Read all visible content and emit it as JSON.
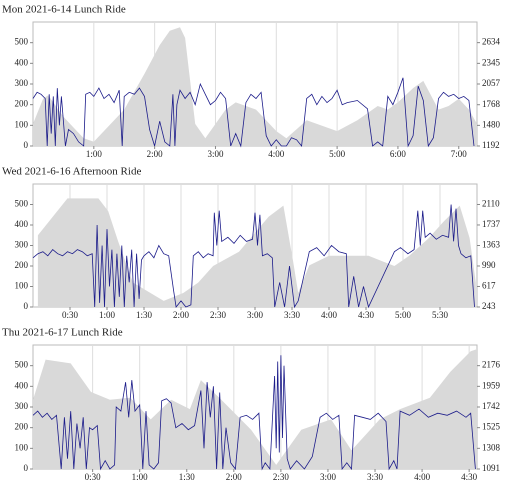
{
  "chart_data": [
    {
      "type": "line",
      "title": "Mon 2021-6-14 Lunch Ride",
      "grid": "x",
      "xlim": [
        0,
        438
      ],
      "ylim": [
        0,
        600
      ],
      "y2lim": [
        1192,
        2922
      ],
      "xticks": [
        {
          "value": 60,
          "label": "1:00"
        },
        {
          "value": 120,
          "label": "2:00"
        },
        {
          "value": 180,
          "label": "3:00"
        },
        {
          "value": 240,
          "label": "4:00"
        },
        {
          "value": 300,
          "label": "5:00"
        },
        {
          "value": 360,
          "label": "6:00"
        },
        {
          "value": 420,
          "label": "7:00"
        }
      ],
      "yticks": [
        0,
        100,
        200,
        300,
        400,
        500
      ],
      "y2ticks": [
        1192,
        1480,
        1768,
        2057,
        2345,
        2634
      ],
      "series": [
        {
          "axis": "y2",
          "color": "#d9d9d9",
          "x": [
            0,
            10,
            15,
            30,
            50,
            60,
            90,
            110,
            125,
            135,
            145,
            150,
            160,
            170,
            190,
            200,
            220,
            240,
            250,
            270,
            300,
            320,
            340,
            350,
            360,
            375,
            385,
            400,
            410,
            420,
            430,
            438
          ],
          "values": [
            1500,
            1850,
            1900,
            1600,
            1300,
            1250,
            1700,
            2200,
            2600,
            2800,
            2850,
            2700,
            1500,
            1300,
            1700,
            1800,
            1700,
            1400,
            1300,
            1550,
            1400,
            1550,
            1750,
            1700,
            1800,
            2000,
            2100,
            1700,
            1750,
            1850,
            1700,
            1500
          ]
        },
        {
          "color": "#1c1c8a",
          "x": [
            0,
            4,
            8,
            12,
            14,
            16,
            18,
            20,
            22,
            24,
            26,
            28,
            32,
            35,
            40,
            45,
            50,
            52,
            56,
            60,
            65,
            70,
            75,
            80,
            85,
            88,
            90,
            95,
            100,
            105,
            110,
            115,
            120,
            125,
            130,
            135,
            138,
            140,
            142,
            145,
            150,
            155,
            160,
            165,
            170,
            175,
            180,
            185,
            190,
            195,
            200,
            205,
            210,
            215,
            220,
            225,
            230,
            235,
            240,
            245,
            250,
            255,
            260,
            265,
            270,
            275,
            280,
            285,
            290,
            295,
            300,
            305,
            310,
            320,
            330,
            335,
            340,
            345,
            350,
            355,
            360,
            365,
            370,
            375,
            380,
            385,
            390,
            395,
            400,
            405,
            410,
            415,
            420,
            425,
            430,
            435
          ],
          "values": [
            230,
            260,
            250,
            230,
            0,
            250,
            60,
            240,
            0,
            280,
            100,
            240,
            0,
            80,
            60,
            20,
            0,
            250,
            260,
            240,
            280,
            230,
            250,
            210,
            270,
            0,
            240,
            260,
            250,
            280,
            240,
            80,
            0,
            120,
            20,
            0,
            250,
            0,
            200,
            270,
            230,
            260,
            200,
            300,
            250,
            200,
            220,
            260,
            230,
            0,
            60,
            0,
            210,
            250,
            230,
            260,
            50,
            0,
            30,
            0,
            0,
            40,
            30,
            0,
            230,
            250,
            200,
            240,
            210,
            230,
            270,
            200,
            210,
            220,
            180,
            0,
            20,
            0,
            240,
            200,
            260,
            330,
            0,
            50,
            290,
            220,
            0,
            40,
            230,
            260,
            240,
            250,
            230,
            240,
            220,
            0
          ]
        }
      ]
    },
    {
      "type": "line",
      "title": "Wed 2021-6-16 Afternoon Ride",
      "grid": "x",
      "xlim": [
        0,
        360
      ],
      "ylim": [
        0,
        600
      ],
      "y2lim": [
        243,
        2483
      ],
      "xticks": [
        {
          "value": 30,
          "label": "0:30"
        },
        {
          "value": 60,
          "label": "1:00"
        },
        {
          "value": 90,
          "label": "1:30"
        },
        {
          "value": 120,
          "label": "2:00"
        },
        {
          "value": 150,
          "label": "2:30"
        },
        {
          "value": 180,
          "label": "3:00"
        },
        {
          "value": 210,
          "label": "3:30"
        },
        {
          "value": 240,
          "label": "4:00"
        },
        {
          "value": 270,
          "label": "4:30"
        },
        {
          "value": 300,
          "label": "5:00"
        },
        {
          "value": 330,
          "label": "5:30"
        }
      ],
      "yticks": [
        0,
        100,
        200,
        300,
        400,
        500
      ],
      "y2ticks": [
        243,
        617,
        990,
        1363,
        1737,
        2110
      ],
      "series": [
        {
          "axis": "y2",
          "color": "#d9d9d9",
          "x": [
            4,
            28,
            53,
            61,
            69,
            81,
            106,
            122,
            134,
            146,
            167,
            191,
            203,
            211,
            215,
            224,
            240,
            272,
            293,
            305,
            321,
            333,
            346,
            354,
            359
          ],
          "values": [
            1550,
            2220,
            2220,
            1990,
            1440,
            690,
            355,
            500,
            690,
            990,
            1250,
            1886,
            2090,
            1064,
            500,
            1000,
            1176,
            1176,
            990,
            1176,
            1500,
            1800,
            2090,
            1500,
            690
          ]
        },
        {
          "color": "#1c1c8a",
          "x": [
            0,
            4,
            8,
            12,
            16,
            20,
            24,
            28,
            32,
            36,
            40,
            44,
            48,
            50,
            52,
            54,
            56,
            58,
            60,
            62,
            64,
            66,
            68,
            70,
            72,
            74,
            76,
            78,
            80,
            82,
            84,
            86,
            88,
            90,
            94,
            98,
            102,
            106,
            110,
            114,
            116,
            120,
            124,
            128,
            130,
            134,
            138,
            142,
            146,
            147,
            149,
            151,
            153,
            158,
            163,
            168,
            173,
            178,
            180,
            182,
            184,
            186,
            190,
            194,
            196,
            200,
            204,
            208,
            212,
            215,
            224,
            230,
            236,
            242,
            248,
            254,
            256,
            260,
            264,
            268,
            272,
            293,
            298,
            304,
            309,
            312,
            314,
            316,
            318,
            322,
            327,
            332,
            337,
            339,
            341,
            343,
            345,
            347,
            351,
            355,
            358
          ],
          "values": [
            240,
            260,
            270,
            250,
            280,
            260,
            250,
            270,
            260,
            280,
            270,
            250,
            260,
            0,
            400,
            20,
            300,
            0,
            380,
            100,
            280,
            0,
            260,
            50,
            300,
            0,
            250,
            120,
            280,
            0,
            260,
            40,
            230,
            250,
            270,
            240,
            300,
            260,
            250,
            80,
            0,
            30,
            0,
            10,
            250,
            270,
            240,
            260,
            250,
            460,
            300,
            470,
            320,
            340,
            310,
            350,
            320,
            330,
            460,
            300,
            450,
            250,
            260,
            240,
            0,
            120,
            0,
            200,
            0,
            30,
            270,
            290,
            250,
            300,
            270,
            260,
            0,
            150,
            0,
            100,
            0,
            270,
            290,
            260,
            280,
            470,
            300,
            470,
            340,
            360,
            330,
            350,
            340,
            500,
            320,
            480,
            300,
            260,
            240,
            250,
            0
          ]
        }
      ]
    },
    {
      "type": "line",
      "title": "Thu 2021-6-17 Lunch Ride",
      "grid": "x",
      "xlim": [
        -8,
        275
      ],
      "ylim": [
        0,
        600
      ],
      "y2lim": [
        1091,
        2393
      ],
      "xticks": [
        {
          "value": 30,
          "label": "0:30"
        },
        {
          "value": 60,
          "label": "1:00"
        },
        {
          "value": 90,
          "label": "1:30"
        },
        {
          "value": 120,
          "label": "2:00"
        },
        {
          "value": 150,
          "label": "2:30"
        },
        {
          "value": 180,
          "label": "3:00"
        },
        {
          "value": 210,
          "label": "3:30"
        },
        {
          "value": 240,
          "label": "4:00"
        },
        {
          "value": 270,
          "label": "4:30"
        }
      ],
      "yticks": [
        0,
        100,
        200,
        300,
        400,
        500
      ],
      "y2ticks": [
        1091,
        1308,
        1525,
        1742,
        1959,
        2176
      ],
      "series": [
        {
          "axis": "y2",
          "color": "#d9d9d9",
          "x": [
            -8,
            0,
            16,
            29,
            41,
            54,
            67,
            80,
            92,
            99,
            112,
            131,
            147,
            163,
            182,
            195,
            213,
            226,
            245,
            258,
            271,
            275
          ],
          "values": [
            1818,
            2240,
            2200,
            1900,
            1818,
            1840,
            1612,
            1818,
            1720,
            2024,
            1818,
            1503,
            1134,
            1503,
            1612,
            1286,
            1612,
            1720,
            1840,
            2111,
            2328,
            2350
          ]
        },
        {
          "color": "#1c1c8a",
          "x": [
            -8,
            -5,
            -2,
            1,
            4,
            7,
            10,
            12,
            14,
            16,
            18,
            20,
            22,
            24,
            26,
            28,
            30,
            33,
            35,
            38,
            41,
            44,
            45,
            48,
            51,
            53,
            55,
            57,
            60,
            62,
            64,
            66,
            69,
            72,
            74,
            77,
            80,
            83,
            87,
            91,
            95,
            99,
            101,
            103,
            105,
            107,
            109,
            111,
            113,
            115,
            118,
            121,
            124,
            128,
            132,
            136,
            138,
            140,
            143,
            146,
            147,
            148,
            149,
            150,
            151,
            152,
            154,
            156,
            160,
            165,
            170,
            175,
            179,
            183,
            187,
            189,
            192,
            195,
            197,
            202,
            207,
            212,
            217,
            219,
            222,
            224,
            226,
            232,
            238,
            244,
            250,
            256,
            262,
            268,
            271,
            274
          ],
          "values": [
            260,
            280,
            250,
            270,
            240,
            260,
            0,
            250,
            50,
            280,
            0,
            220,
            100,
            250,
            0,
            200,
            190,
            210,
            0,
            40,
            0,
            20,
            300,
            280,
            420,
            250,
            430,
            280,
            310,
            0,
            280,
            20,
            0,
            30,
            330,
            340,
            320,
            200,
            220,
            190,
            210,
            380,
            100,
            420,
            250,
            400,
            0,
            370,
            0,
            200,
            30,
            0,
            250,
            260,
            240,
            270,
            0,
            30,
            0,
            450,
            100,
            520,
            80,
            550,
            150,
            500,
            50,
            0,
            40,
            0,
            60,
            250,
            270,
            240,
            260,
            0,
            30,
            0,
            260,
            250,
            240,
            270,
            230,
            0,
            40,
            0,
            280,
            260,
            290,
            250,
            270,
            260,
            280,
            250,
            270,
            0
          ]
        }
      ]
    }
  ]
}
